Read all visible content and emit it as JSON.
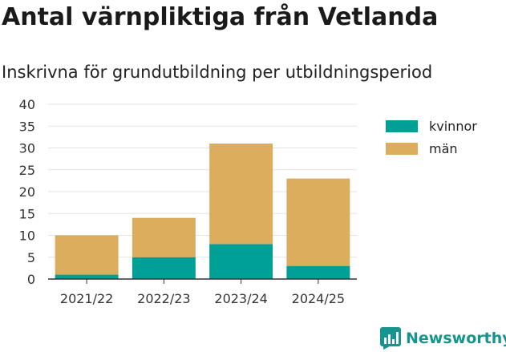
{
  "title": "Antal värnpliktiga från Vetlanda",
  "subtitle": "Inskrivna för grundutbildning per utbildningsperiod",
  "brand": {
    "name": "Newsworthy",
    "color": "#16958f",
    "icon": "bar-chart-logo-icon"
  },
  "colors": {
    "kvinnor": "#00a096",
    "man": "#dbad5c",
    "grid": "#e3e3e3",
    "axis": "#333333"
  },
  "chart_data": {
    "type": "bar",
    "stacked": true,
    "categories": [
      "2021/22",
      "2022/23",
      "2023/24",
      "2024/25"
    ],
    "series": [
      {
        "name": "kvinnor",
        "values": [
          1,
          5,
          8,
          3
        ]
      },
      {
        "name": "män",
        "values": [
          9,
          9,
          23,
          20
        ]
      }
    ],
    "ylim": [
      0,
      40
    ],
    "yticks": [
      0,
      5,
      10,
      15,
      20,
      25,
      30,
      35,
      40
    ],
    "grid": true,
    "legend": "right"
  }
}
